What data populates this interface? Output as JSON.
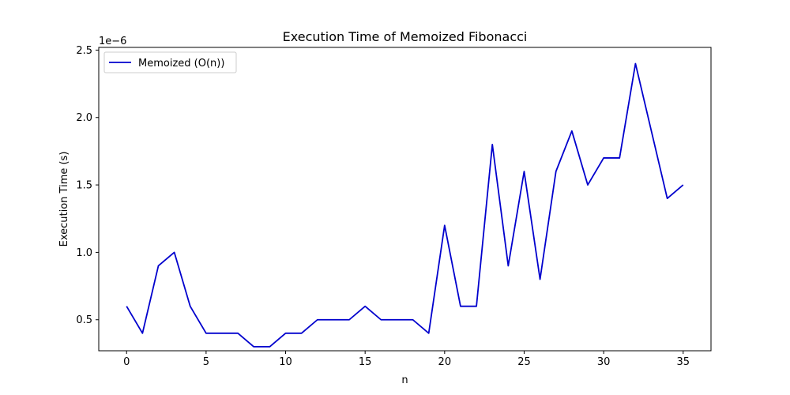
{
  "chart_data": {
    "type": "line",
    "title": "Execution Time of Memoized Fibonacci",
    "xlabel": "n",
    "ylabel": "Execution Time (s)",
    "y_offset_label": "1e−6",
    "xlim": [
      -1.75,
      36.75
    ],
    "ylim": [
      0.27,
      2.52
    ],
    "y_scale": 1e-06,
    "x_ticks": [
      0,
      5,
      10,
      15,
      20,
      25,
      30,
      35
    ],
    "x_tick_labels": [
      "0",
      "5",
      "10",
      "15",
      "20",
      "25",
      "30",
      "35"
    ],
    "y_ticks": [
      0.5,
      1.0,
      1.5,
      2.0,
      2.5
    ],
    "y_tick_labels": [
      "0.5",
      "1.0",
      "1.5",
      "2.0",
      "2.5"
    ],
    "grid": false,
    "legend_position": "upper-left",
    "series": [
      {
        "name": "Memoized (O(n))",
        "color": "#0000cd",
        "x": [
          0,
          1,
          2,
          3,
          4,
          5,
          6,
          7,
          8,
          9,
          10,
          11,
          12,
          13,
          14,
          15,
          16,
          17,
          18,
          19,
          20,
          21,
          22,
          23,
          24,
          25,
          26,
          27,
          28,
          29,
          30,
          31,
          32,
          33,
          34,
          35
        ],
        "values": [
          0.6,
          0.4,
          0.9,
          1.0,
          0.6,
          0.4,
          0.4,
          0.4,
          0.3,
          0.3,
          0.4,
          0.4,
          0.5,
          0.5,
          0.5,
          0.6,
          0.5,
          0.5,
          0.5,
          0.4,
          1.2,
          0.6,
          0.6,
          1.8,
          0.9,
          1.6,
          0.8,
          1.6,
          1.9,
          1.5,
          1.7,
          1.7,
          2.4,
          1.9,
          1.4,
          1.5
        ]
      }
    ]
  }
}
